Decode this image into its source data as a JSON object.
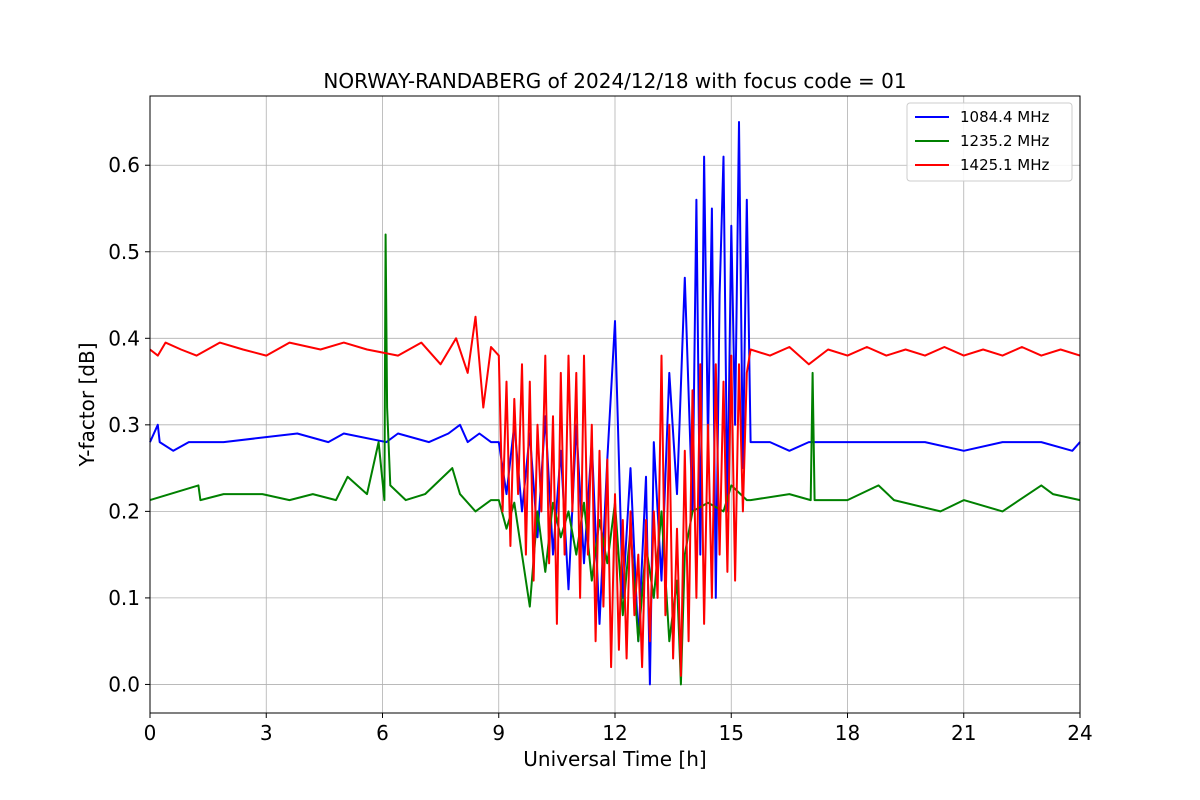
{
  "chart_data": {
    "type": "line",
    "title": "NORWAY-RANDABERG of 2024/12/18 with focus code = 01",
    "xlabel": "Universal Time [h]",
    "ylabel": "Y-factor [dB]",
    "xlim": [
      0,
      24
    ],
    "ylim": [
      -0.033,
      0.68
    ],
    "xticks": [
      0,
      3,
      6,
      9,
      12,
      15,
      18,
      21,
      24
    ],
    "yticks": [
      0.0,
      0.1,
      0.2,
      0.3,
      0.4,
      0.5,
      0.6
    ],
    "ytick_labels": [
      "0.0",
      "0.1",
      "0.2",
      "0.3",
      "0.4",
      "0.5",
      "0.6"
    ],
    "grid": true,
    "legend_position": "top-right",
    "series": [
      {
        "name": "1084.4 MHz",
        "color": "#0000ff",
        "x": [
          0,
          0.2,
          0.25,
          0.6,
          1.0,
          1.9,
          3.8,
          4.6,
          5.0,
          6.1,
          6.4,
          7.2,
          7.7,
          8.0,
          8.2,
          8.5,
          8.8,
          9.0,
          9.2,
          9.4,
          9.6,
          9.8,
          10.0,
          10.2,
          10.4,
          10.6,
          10.8,
          11.0,
          11.2,
          11.4,
          11.6,
          11.8,
          12.0,
          12.2,
          12.4,
          12.6,
          12.8,
          12.9,
          13.0,
          13.2,
          13.4,
          13.6,
          13.8,
          14.0,
          14.1,
          14.2,
          14.3,
          14.4,
          14.5,
          14.6,
          14.7,
          14.8,
          14.9,
          15.0,
          15.1,
          15.2,
          15.3,
          15.4,
          15.5,
          16.0,
          16.5,
          17.0,
          18.0,
          19.0,
          20.0,
          21.0,
          22.0,
          23.0,
          23.8,
          24.0
        ],
        "values": [
          0.28,
          0.3,
          0.28,
          0.27,
          0.28,
          0.28,
          0.29,
          0.28,
          0.29,
          0.28,
          0.29,
          0.28,
          0.29,
          0.3,
          0.28,
          0.29,
          0.28,
          0.28,
          0.22,
          0.3,
          0.2,
          0.29,
          0.17,
          0.31,
          0.15,
          0.27,
          0.11,
          0.3,
          0.14,
          0.28,
          0.07,
          0.26,
          0.42,
          0.1,
          0.25,
          0.05,
          0.24,
          0.0,
          0.28,
          0.12,
          0.36,
          0.22,
          0.47,
          0.2,
          0.56,
          0.15,
          0.61,
          0.28,
          0.55,
          0.1,
          0.45,
          0.61,
          0.2,
          0.53,
          0.3,
          0.65,
          0.25,
          0.56,
          0.28,
          0.28,
          0.27,
          0.28,
          0.28,
          0.28,
          0.28,
          0.27,
          0.28,
          0.28,
          0.27,
          0.28
        ]
      },
      {
        "name": "1235.2 MHz",
        "color": "#008000",
        "x": [
          0,
          1.25,
          1.3,
          1.9,
          2.9,
          3.6,
          4.2,
          4.8,
          5.1,
          5.6,
          5.9,
          6.05,
          6.08,
          6.12,
          6.2,
          6.6,
          7.1,
          7.8,
          8.0,
          8.4,
          8.8,
          9.0,
          9.2,
          9.4,
          9.6,
          9.8,
          10.0,
          10.2,
          10.4,
          10.6,
          10.8,
          11.0,
          11.2,
          11.4,
          11.6,
          11.8,
          12.0,
          12.2,
          12.4,
          12.6,
          12.8,
          13.0,
          13.2,
          13.4,
          13.6,
          13.7,
          13.8,
          14.0,
          14.4,
          14.8,
          15.0,
          15.4,
          15.5,
          16.5,
          17.05,
          17.1,
          17.15,
          17.5,
          18.0,
          18.8,
          19.2,
          20.4,
          21.0,
          22.0,
          23.0,
          23.3,
          24.0
        ],
        "values": [
          0.213,
          0.23,
          0.213,
          0.22,
          0.22,
          0.213,
          0.22,
          0.213,
          0.24,
          0.22,
          0.28,
          0.213,
          0.52,
          0.32,
          0.23,
          0.213,
          0.22,
          0.25,
          0.22,
          0.2,
          0.213,
          0.213,
          0.18,
          0.21,
          0.15,
          0.09,
          0.2,
          0.13,
          0.21,
          0.17,
          0.2,
          0.15,
          0.21,
          0.12,
          0.19,
          0.14,
          0.21,
          0.08,
          0.18,
          0.05,
          0.16,
          0.1,
          0.2,
          0.05,
          0.12,
          0.0,
          0.15,
          0.2,
          0.21,
          0.2,
          0.23,
          0.213,
          0.213,
          0.22,
          0.213,
          0.36,
          0.213,
          0.213,
          0.213,
          0.23,
          0.213,
          0.2,
          0.213,
          0.2,
          0.23,
          0.22,
          0.213
        ]
      },
      {
        "name": "1425.1 MHz",
        "color": "#ff0000",
        "x": [
          0,
          0.2,
          0.4,
          0.8,
          1.2,
          1.8,
          2.4,
          3.0,
          3.6,
          4.4,
          5.0,
          5.6,
          6.4,
          7.0,
          7.5,
          7.9,
          8.2,
          8.4,
          8.6,
          8.8,
          9.0,
          9.1,
          9.2,
          9.3,
          9.4,
          9.5,
          9.6,
          9.7,
          9.8,
          9.9,
          10.0,
          10.1,
          10.2,
          10.3,
          10.4,
          10.5,
          10.6,
          10.7,
          10.8,
          10.9,
          11.0,
          11.1,
          11.2,
          11.3,
          11.4,
          11.5,
          11.6,
          11.7,
          11.8,
          11.9,
          12.0,
          12.1,
          12.2,
          12.3,
          12.4,
          12.5,
          12.6,
          12.7,
          12.8,
          12.9,
          13.0,
          13.1,
          13.2,
          13.3,
          13.4,
          13.5,
          13.6,
          13.7,
          13.8,
          13.9,
          14.0,
          14.1,
          14.2,
          14.3,
          14.4,
          14.5,
          14.6,
          14.7,
          14.8,
          14.9,
          15.0,
          15.1,
          15.2,
          15.3,
          15.4,
          15.5,
          16.0,
          16.5,
          17.0,
          17.5,
          18.0,
          18.5,
          19.0,
          19.5,
          20.0,
          20.5,
          21.0,
          21.5,
          22.0,
          22.5,
          23.0,
          23.5,
          24.0
        ],
        "values": [
          0.387,
          0.38,
          0.395,
          0.387,
          0.38,
          0.395,
          0.387,
          0.38,
          0.395,
          0.387,
          0.395,
          0.387,
          0.38,
          0.395,
          0.37,
          0.4,
          0.36,
          0.425,
          0.32,
          0.39,
          0.38,
          0.2,
          0.35,
          0.16,
          0.33,
          0.22,
          0.37,
          0.15,
          0.35,
          0.12,
          0.3,
          0.2,
          0.38,
          0.14,
          0.31,
          0.07,
          0.36,
          0.15,
          0.38,
          0.2,
          0.36,
          0.1,
          0.38,
          0.15,
          0.3,
          0.05,
          0.27,
          0.09,
          0.26,
          0.02,
          0.22,
          0.04,
          0.19,
          0.03,
          0.2,
          0.08,
          0.15,
          0.02,
          0.19,
          0.05,
          0.2,
          0.1,
          0.38,
          0.08,
          0.3,
          0.03,
          0.18,
          0.01,
          0.27,
          0.05,
          0.34,
          0.1,
          0.37,
          0.07,
          0.3,
          0.1,
          0.37,
          0.15,
          0.35,
          0.13,
          0.38,
          0.12,
          0.37,
          0.2,
          0.36,
          0.387,
          0.38,
          0.39,
          0.37,
          0.387,
          0.38,
          0.39,
          0.38,
          0.387,
          0.38,
          0.39,
          0.38,
          0.387,
          0.38,
          0.39,
          0.38,
          0.387,
          0.38
        ]
      }
    ]
  }
}
